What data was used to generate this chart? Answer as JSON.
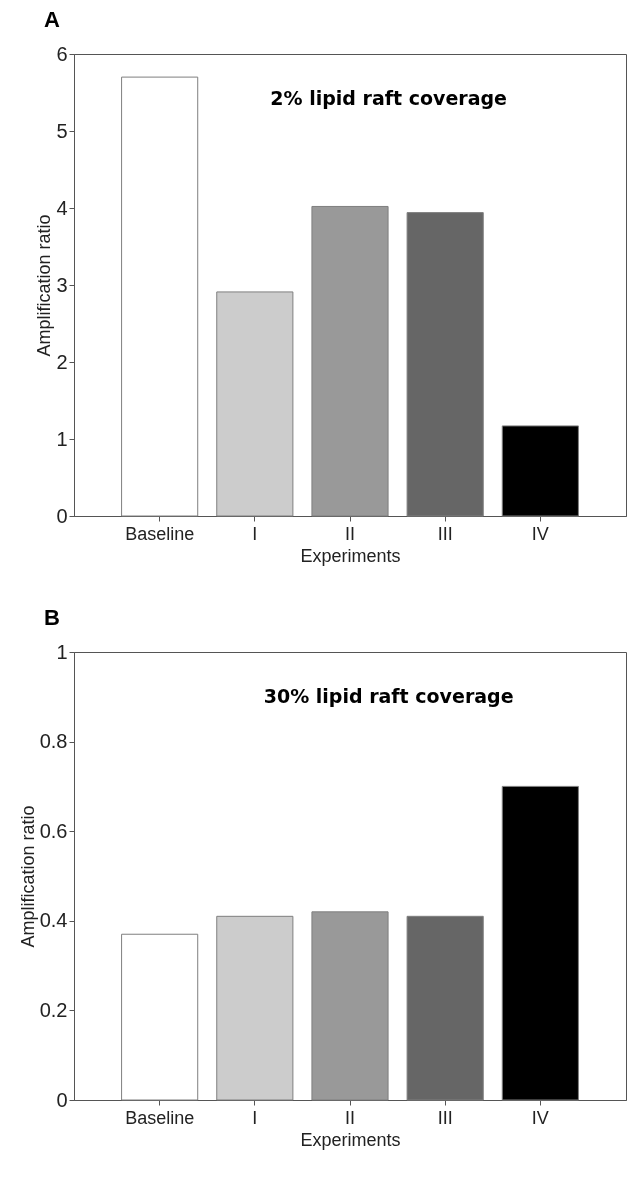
{
  "chart_data": [
    {
      "type": "bar",
      "title": "A",
      "xlabel": "Experiments",
      "ylabel": "Amplification ratio",
      "categories": [
        "Baseline",
        "I",
        "II",
        "III",
        "IV"
      ],
      "values": [
        5.7,
        2.91,
        4.02,
        3.94,
        1.17
      ],
      "colors": [
        "#ffffff",
        "#cccccc",
        "#999999",
        "#666666",
        "#000000"
      ],
      "ylim": [
        0,
        6
      ],
      "yticks": [
        0,
        1,
        2,
        3,
        4,
        5,
        6
      ],
      "annotations": [
        "2% lipid raft coverage"
      ]
    },
    {
      "type": "bar",
      "title": "B",
      "xlabel": "Experiments",
      "ylabel": "Amplification ratio",
      "categories": [
        "Baseline",
        "I",
        "II",
        "III",
        "IV"
      ],
      "values": [
        0.37,
        0.41,
        0.42,
        0.41,
        0.7
      ],
      "colors": [
        "#ffffff",
        "#cccccc",
        "#999999",
        "#666666",
        "#000000"
      ],
      "ylim": [
        0,
        1
      ],
      "yticks": [
        0,
        0.2,
        0.4,
        0.6,
        0.8,
        1
      ],
      "annotations": [
        "30% lipid raft coverage"
      ]
    }
  ]
}
